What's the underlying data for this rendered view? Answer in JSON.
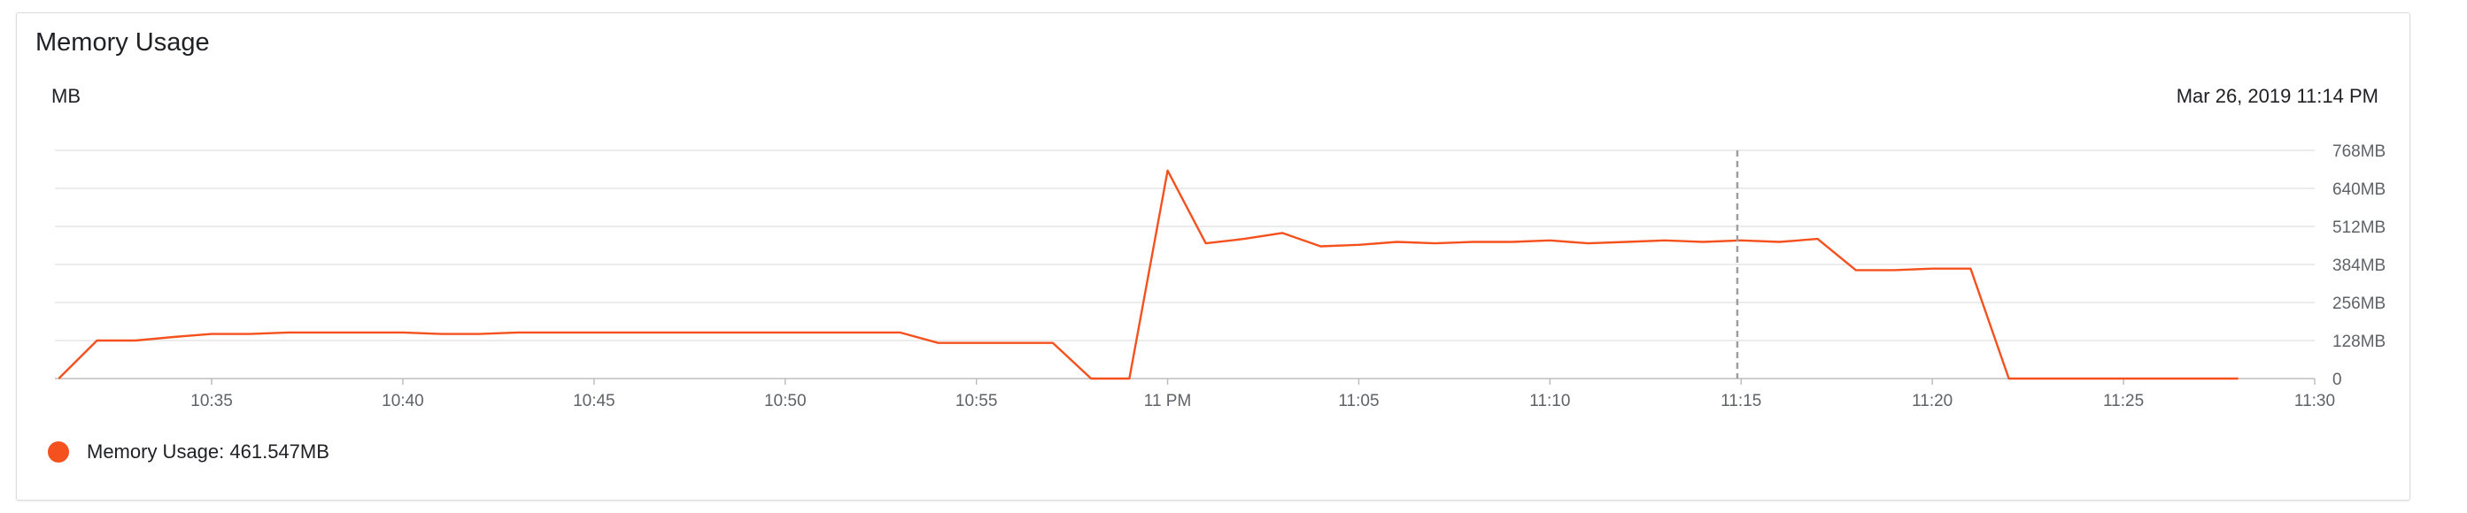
{
  "card": {
    "title": "Memory Usage",
    "unit": "MB",
    "timestamp": "Mar 26, 2019 11:14 PM"
  },
  "legend": {
    "label": "Memory Usage: 461.547MB",
    "color": "#f4511e"
  },
  "colors": {
    "line": "#f4511e",
    "grid": "#e6e6e6",
    "axis": "#bdbdbd",
    "cursor": "#9e9e9e"
  },
  "chart_data": {
    "type": "line",
    "title": "Memory Usage",
    "ylabel": "MB",
    "x_unit": "minutes since 10:30",
    "x_ticks": [
      {
        "x": 5,
        "label": "10:35"
      },
      {
        "x": 10,
        "label": "10:40"
      },
      {
        "x": 15,
        "label": "10:45"
      },
      {
        "x": 20,
        "label": "10:50"
      },
      {
        "x": 25,
        "label": "10:55"
      },
      {
        "x": 30,
        "label": "11 PM"
      },
      {
        "x": 35,
        "label": "11:05"
      },
      {
        "x": 40,
        "label": "11:10"
      },
      {
        "x": 45,
        "label": "11:15"
      },
      {
        "x": 50,
        "label": "11:20"
      },
      {
        "x": 55,
        "label": "11:25"
      },
      {
        "x": 60,
        "label": "11:30"
      }
    ],
    "y_ticks": [
      {
        "y": 0,
        "label": "0"
      },
      {
        "y": 128,
        "label": "128MB"
      },
      {
        "y": 256,
        "label": "256MB"
      },
      {
        "y": 384,
        "label": "384MB"
      },
      {
        "y": 512,
        "label": "512MB"
      },
      {
        "y": 640,
        "label": "640MB"
      },
      {
        "y": 768,
        "label": "768MB"
      }
    ],
    "xlim": [
      0.9,
      60
    ],
    "ylim": [
      0,
      768
    ],
    "cursor_x": 44.9,
    "grid": true,
    "series": [
      {
        "name": "Memory Usage",
        "x": [
          1,
          2,
          3,
          4,
          5,
          6,
          7,
          8,
          9,
          10,
          11,
          12,
          13,
          14,
          15,
          16,
          17,
          18,
          19,
          20,
          21,
          22,
          23,
          24,
          25,
          26,
          27,
          28,
          29,
          30,
          31,
          32,
          33,
          34,
          35,
          36,
          37,
          38,
          39,
          40,
          41,
          42,
          43,
          44,
          45,
          46,
          47,
          48,
          49,
          50,
          51,
          52,
          53,
          54,
          55,
          56,
          57,
          58
        ],
        "values": [
          0,
          128,
          128,
          140,
          150,
          150,
          155,
          155,
          155,
          155,
          150,
          150,
          155,
          155,
          155,
          155,
          155,
          155,
          155,
          155,
          155,
          155,
          155,
          120,
          120,
          120,
          120,
          0,
          0,
          700,
          455,
          470,
          490,
          445,
          450,
          460,
          455,
          460,
          460,
          465,
          455,
          460,
          465,
          460,
          465,
          460,
          470,
          365,
          365,
          370,
          370,
          0,
          0,
          0,
          0,
          0,
          0,
          0
        ]
      }
    ]
  }
}
